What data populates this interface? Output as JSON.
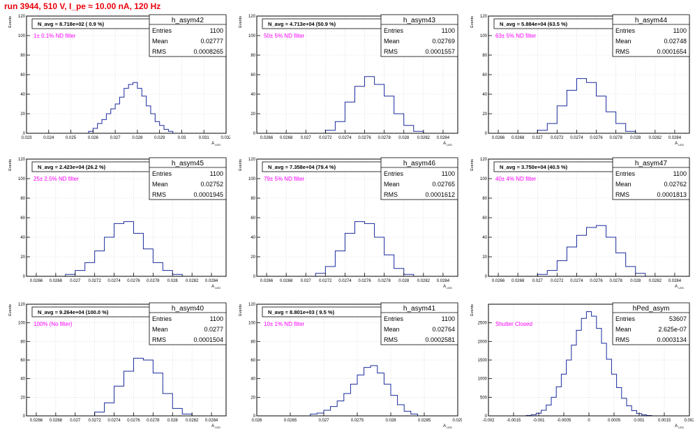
{
  "page": {
    "title": "run 3944,   510 V, I_pe ≈ 10.00 nA, 120 Hz",
    "y_axis_label": "Events",
    "x_axis_label": "A",
    "x_axis_subscript": "LED"
  },
  "colors": {
    "histogram": "#1a2a9c",
    "title": "#e8000b",
    "annotation": "#ff00ff",
    "grid": "#c8c8c8",
    "frame": "#000000"
  },
  "chart_data": [
    {
      "type": "bar",
      "name": "h_asym42",
      "navg": "N_avg = 8.718e+02 ( 0.9 %)",
      "filter": "1± 0.1% ND filter",
      "stats": {
        "entries_label": "Entries",
        "entries": "1100",
        "mean_label": "Mean",
        "mean": "0.02777",
        "rms_label": "RMS",
        "rms": "0.0008265"
      },
      "xlim": [
        0.023,
        0.032
      ],
      "ylim": [
        0,
        120
      ],
      "xticks": [
        0.023,
        0.024,
        0.025,
        0.026,
        0.027,
        0.028,
        0.029,
        0.03,
        0.031,
        0.032
      ],
      "xtick_labels": [
        "0.023",
        "0.024",
        "0.025",
        "0.026",
        "0.027",
        "0.028",
        "0.029",
        "0.03",
        "0.031",
        "0.032"
      ],
      "yticks": [
        0,
        20,
        40,
        60,
        80,
        100,
        120
      ],
      "x": [
        0.0259,
        0.0261,
        0.0263,
        0.0265,
        0.0267,
        0.0269,
        0.0271,
        0.0273,
        0.0275,
        0.0277,
        0.0279,
        0.0281,
        0.0283,
        0.0285,
        0.0287,
        0.0289,
        0.0291,
        0.0293,
        0.0295
      ],
      "values": [
        2,
        5,
        10,
        14,
        20,
        25,
        30,
        37,
        46,
        50,
        52,
        46,
        38,
        28,
        20,
        12,
        8,
        4,
        2
      ]
    },
    {
      "type": "bar",
      "name": "h_asym43",
      "navg": "N_avg = 4.713e+04 (50.9 %)",
      "filter": "50± 5% ND filter",
      "stats": {
        "entries_label": "Entries",
        "entries": "1100",
        "mean_label": "Mean",
        "mean": "0.02769",
        "rms_label": "RMS",
        "rms": "0.0001557"
      },
      "xlim": [
        0.0265,
        0.02855
      ],
      "ylim": [
        0,
        120
      ],
      "xticks": [
        0.0266,
        0.0268,
        0.027,
        0.0272,
        0.0274,
        0.0276,
        0.0278,
        0.028,
        0.0282,
        0.0284
      ],
      "xtick_labels": [
        "0.0266",
        "0.0268",
        "0.027",
        "0.0272",
        "0.0274",
        "0.0276",
        "0.0278",
        "0.028",
        "0.0282",
        "0.0284"
      ],
      "yticks": [
        0,
        20,
        40,
        60,
        80,
        100,
        120
      ],
      "x": [
        0.02725,
        0.02735,
        0.02745,
        0.02755,
        0.02765,
        0.02775,
        0.02785,
        0.02795,
        0.02805,
        0.02815
      ],
      "values": [
        3,
        12,
        32,
        48,
        58,
        50,
        38,
        20,
        8,
        2
      ]
    },
    {
      "type": "bar",
      "name": "h_asym44",
      "navg": "N_avg = 5.884e+04 (63.5 %)",
      "filter": "63± 5% ND filter",
      "stats": {
        "entries_label": "Entries",
        "entries": "1100",
        "mean_label": "Mean",
        "mean": "0.02748",
        "rms_label": "RMS",
        "rms": "0.0001654"
      },
      "xlim": [
        0.0265,
        0.02855
      ],
      "ylim": [
        0,
        120
      ],
      "xticks": [
        0.0266,
        0.0268,
        0.027,
        0.0272,
        0.0274,
        0.0276,
        0.0278,
        0.028,
        0.0282,
        0.0284
      ],
      "xtick_labels": [
        "0.0266",
        "0.0268",
        "0.027",
        "0.0272",
        "0.0274",
        "0.0276",
        "0.0278",
        "0.028",
        "0.0282",
        "0.0284"
      ],
      "yticks": [
        0,
        20,
        40,
        60,
        80,
        100,
        120
      ],
      "x": [
        0.02705,
        0.02715,
        0.02725,
        0.02735,
        0.02745,
        0.02755,
        0.02765,
        0.02775,
        0.02785,
        0.02795
      ],
      "values": [
        3,
        10,
        28,
        44,
        56,
        52,
        38,
        22,
        10,
        2
      ]
    },
    {
      "type": "bar",
      "name": "h_asym45",
      "navg": "N_avg = 2.423e+04 (26.2 %)",
      "filter": "25± 2.5% ND filter",
      "stats": {
        "entries_label": "Entries",
        "entries": "1100",
        "mean_label": "Mean",
        "mean": "0.02752",
        "rms_label": "RMS",
        "rms": "0.0001945"
      },
      "xlim": [
        0.0265,
        0.02855
      ],
      "ylim": [
        0,
        120
      ],
      "xticks": [
        0.0266,
        0.0268,
        0.027,
        0.0272,
        0.0274,
        0.0276,
        0.0278,
        0.028,
        0.0282,
        0.0284
      ],
      "xtick_labels": [
        "0.0266",
        "0.0268",
        "0.027",
        "0.0272",
        "0.0274",
        "0.0276",
        "0.0278",
        "0.028",
        "0.0282",
        "0.0284"
      ],
      "yticks": [
        0,
        20,
        40,
        60,
        80,
        100,
        120
      ],
      "x": [
        0.02695,
        0.02705,
        0.02715,
        0.02725,
        0.02735,
        0.02745,
        0.02755,
        0.02765,
        0.02775,
        0.02785,
        0.02795,
        0.02805
      ],
      "values": [
        2,
        6,
        14,
        26,
        40,
        54,
        56,
        44,
        28,
        14,
        6,
        2
      ]
    },
    {
      "type": "bar",
      "name": "h_asym46",
      "navg": "N_avg = 7.358e+04 (79.4 %)",
      "filter": "79± 5% ND filter",
      "stats": {
        "entries_label": "Entries",
        "entries": "1100",
        "mean_label": "Mean",
        "mean": "0.02765",
        "rms_label": "RMS",
        "rms": "0.0001612"
      },
      "xlim": [
        0.0265,
        0.02855
      ],
      "ylim": [
        0,
        120
      ],
      "xticks": [
        0.0266,
        0.0268,
        0.027,
        0.0272,
        0.0274,
        0.0276,
        0.0278,
        0.028,
        0.0282,
        0.0284
      ],
      "xtick_labels": [
        "0.0266",
        "0.0268",
        "0.027",
        "0.0272",
        "0.0274",
        "0.0276",
        "0.0278",
        "0.028",
        "0.0282",
        "0.0284"
      ],
      "yticks": [
        0,
        20,
        40,
        60,
        80,
        100,
        120
      ],
      "x": [
        0.02715,
        0.02725,
        0.02735,
        0.02745,
        0.02755,
        0.02765,
        0.02775,
        0.02785,
        0.02795,
        0.02805
      ],
      "values": [
        3,
        10,
        26,
        44,
        56,
        54,
        40,
        22,
        8,
        2
      ]
    },
    {
      "type": "bar",
      "name": "h_asym47",
      "navg": "N_avg = 3.750e+04 (40.5 %)",
      "filter": "40± 4% ND filter",
      "stats": {
        "entries_label": "Entries",
        "entries": "1100",
        "mean_label": "Mean",
        "mean": "0.02762",
        "rms_label": "RMS",
        "rms": "0.0001813"
      },
      "xlim": [
        0.0265,
        0.02855
      ],
      "ylim": [
        0,
        120
      ],
      "xticks": [
        0.0266,
        0.0268,
        0.027,
        0.0272,
        0.0274,
        0.0276,
        0.0278,
        0.028,
        0.0282,
        0.0284
      ],
      "xtick_labels": [
        "0.0266",
        "0.0268",
        "0.027",
        "0.0272",
        "0.0274",
        "0.0276",
        "0.0278",
        "0.028",
        "0.0282",
        "0.0284"
      ],
      "yticks": [
        0,
        20,
        40,
        60,
        80,
        100,
        120
      ],
      "x": [
        0.02705,
        0.02715,
        0.02725,
        0.02735,
        0.02745,
        0.02755,
        0.02765,
        0.02775,
        0.02785,
        0.02795,
        0.02805
      ],
      "values": [
        2,
        6,
        16,
        30,
        42,
        50,
        52,
        40,
        24,
        10,
        3
      ]
    },
    {
      "type": "bar",
      "name": "h_asym40",
      "navg": "N_avg = 9.264e+04 (100.0 %)",
      "filter": "100% (No filter)",
      "stats": {
        "entries_label": "Entries",
        "entries": "1100",
        "mean_label": "Mean",
        "mean": "0.0277",
        "rms_label": "RMS",
        "rms": "0.0001504"
      },
      "xlim": [
        0.0265,
        0.02855
      ],
      "ylim": [
        0,
        120
      ],
      "xticks": [
        0.0266,
        0.0268,
        0.027,
        0.0272,
        0.0274,
        0.0276,
        0.0278,
        0.028,
        0.0282,
        0.0284
      ],
      "xtick_labels": [
        "0.0266",
        "0.0268",
        "0.027",
        "0.0272",
        "0.0274",
        "0.0276",
        "0.0278",
        "0.028",
        "0.0282",
        "0.0284"
      ],
      "yticks": [
        0,
        20,
        40,
        60,
        80,
        100,
        120
      ],
      "x": [
        0.02725,
        0.02735,
        0.02745,
        0.02755,
        0.02765,
        0.02775,
        0.02785,
        0.02795,
        0.02805,
        0.02815
      ],
      "values": [
        4,
        14,
        32,
        48,
        62,
        60,
        46,
        24,
        8,
        2
      ]
    },
    {
      "type": "bar",
      "name": "h_asym41",
      "navg": "N_avg = 8.801e+03 ( 9.5 %)",
      "filter": "10± 1% ND filter",
      "stats": {
        "entries_label": "Entries",
        "entries": "1100",
        "mean_label": "Mean",
        "mean": "0.02764",
        "rms_label": "RMS",
        "rms": "0.0002581"
      },
      "xlim": [
        0.026,
        0.029
      ],
      "ylim": [
        0,
        120
      ],
      "xticks": [
        0.026,
        0.0265,
        0.027,
        0.0275,
        0.028,
        0.0285,
        0.029
      ],
      "xtick_labels": [
        "0.026",
        "0.0265",
        "0.027",
        "0.0275",
        "0.028",
        "0.0285",
        "0.029"
      ],
      "yticks": [
        0,
        20,
        40,
        60,
        80,
        100,
        120
      ],
      "x": [
        0.02685,
        0.02695,
        0.02705,
        0.02715,
        0.02725,
        0.02735,
        0.02745,
        0.02755,
        0.02765,
        0.02775,
        0.02785,
        0.02795,
        0.02805,
        0.02815,
        0.02825,
        0.02835
      ],
      "values": [
        2,
        3,
        6,
        10,
        16,
        24,
        34,
        44,
        52,
        54,
        46,
        34,
        22,
        12,
        5,
        2
      ]
    },
    {
      "type": "bar",
      "name": "hPed_asym",
      "navg": "",
      "filter": "Shutter Closed",
      "stats": {
        "entries_label": "Entries",
        "entries": "53607",
        "mean_label": "Mean",
        "mean": "2.625e-07",
        "rms_label": "RMS",
        "rms": "0.0003134"
      },
      "xlim": [
        -0.002,
        0.002
      ],
      "ylim": [
        0,
        3000
      ],
      "xticks": [
        -0.002,
        -0.0015,
        -0.001,
        -0.0005,
        0,
        0.0005,
        0.001,
        0.0015,
        0.002
      ],
      "xtick_labels": [
        "-0.002",
        "-0.0015",
        "-0.001",
        "-0.0005",
        "0",
        "0.0005",
        "0.001",
        "0.0015",
        "0.002"
      ],
      "yticks": [
        0,
        500,
        1000,
        1500,
        2000,
        2500
      ],
      "x": [
        -0.0012,
        -0.0011,
        -0.001,
        -0.0009,
        -0.0008,
        -0.0007,
        -0.0006,
        -0.0005,
        -0.0004,
        -0.0003,
        -0.0002,
        -0.0001,
        0,
        0.0001,
        0.0002,
        0.0003,
        0.0004,
        0.0005,
        0.0006,
        0.0007,
        0.0008,
        0.0009,
        0.001,
        0.0011,
        0.0012
      ],
      "values": [
        10,
        30,
        70,
        150,
        290,
        500,
        780,
        1120,
        1500,
        1900,
        2300,
        2620,
        2800,
        2680,
        2350,
        1950,
        1520,
        1120,
        760,
        470,
        270,
        140,
        60,
        25,
        10
      ]
    }
  ]
}
